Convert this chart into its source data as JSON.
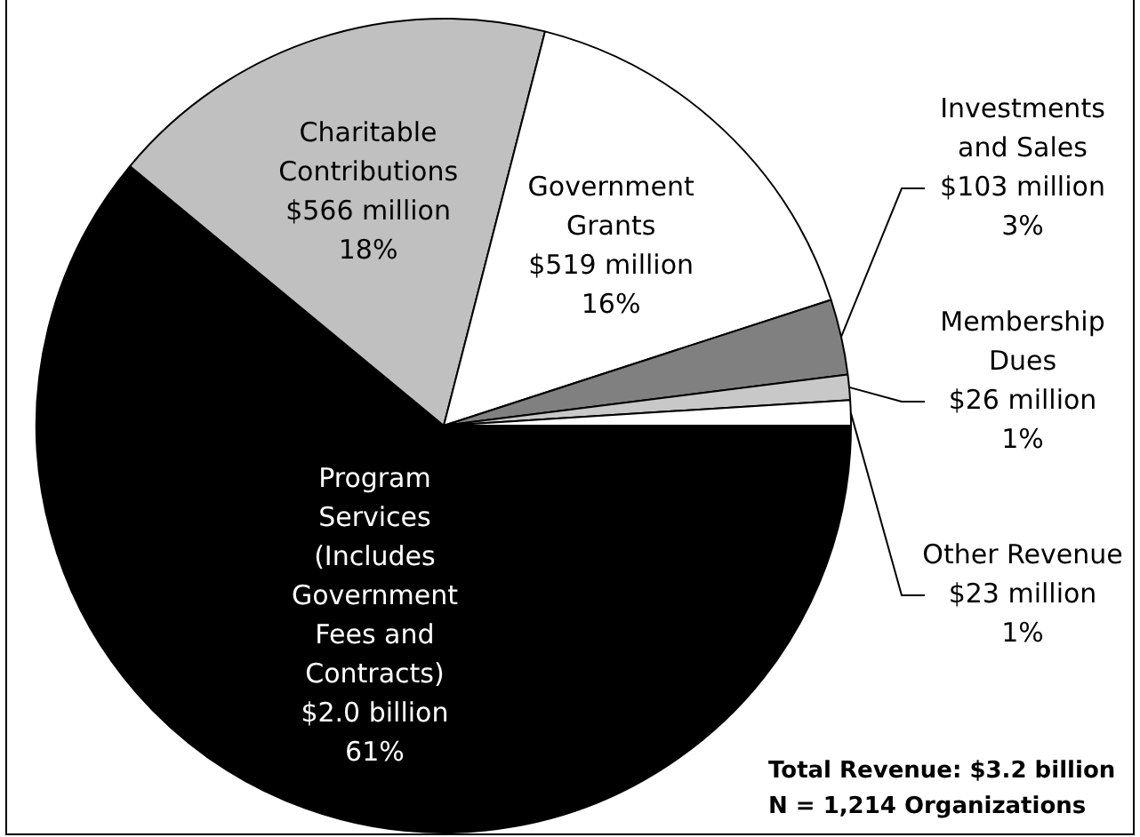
{
  "chart_data": {
    "type": "pie",
    "categories": [
      "Program\nServices\n(Includes\nGovernment\nFees and\nContracts)",
      "Charitable\nContributions",
      "Government\nGrants",
      "Investments\nand Sales",
      "Membership\nDues",
      "Other Revenue"
    ],
    "values": [
      61,
      18,
      16,
      3,
      1,
      1
    ],
    "colors": [
      "#000000",
      "#c0c0c0",
      "#ffffff",
      "#808080",
      "#c8c8c8",
      "#ffffff"
    ],
    "value_labels": [
      "$2.0 billion\n61%",
      "$566 million\n18%",
      "$519 million\n16%",
      "$103 million\n3%",
      "$26 million\n1%",
      "$23 million\n1%"
    ],
    "annotations": [
      "Total Revenue: $3.2 billion",
      "N = 1,214 Organizations"
    ],
    "legend": false
  }
}
